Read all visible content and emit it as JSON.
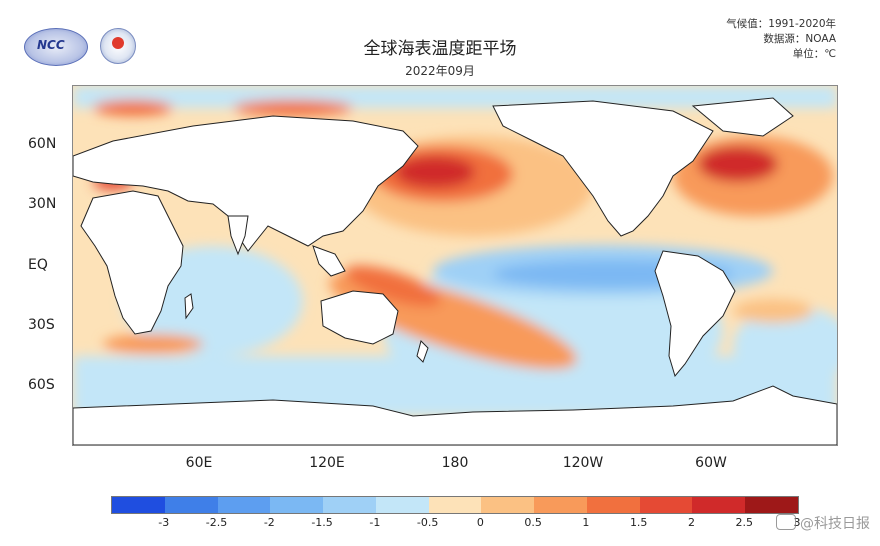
{
  "header": {
    "title": "全球海表温度距平场",
    "subtitle": "2022年09月",
    "meta": [
      "气候值：1991-2020年",
      "数据源：NOAA",
      "单位：℃"
    ]
  },
  "logos": [
    {
      "name": "NCC",
      "label": "NCC"
    },
    {
      "name": "BCC",
      "label": ""
    }
  ],
  "map": {
    "lat_labels": [
      "60N",
      "30N",
      "EQ",
      "30S",
      "60S"
    ],
    "lon_labels": [
      "60E",
      "120E",
      "180",
      "120W",
      "60W"
    ]
  },
  "colorbar": {
    "colors": [
      "#1f4ee0",
      "#3f7fe8",
      "#5d9ef0",
      "#7bb8f3",
      "#9fd0f6",
      "#c3e6f8",
      "#fde2b8",
      "#fbc183",
      "#f89a5a",
      "#f1703e",
      "#e54a34",
      "#d02a2a",
      "#9e1818"
    ],
    "labels": [
      "-3",
      "-2.5",
      "-2",
      "-1.5",
      "-1",
      "-0.5",
      "0",
      "0.5",
      "1",
      "1.5",
      "2",
      "2.5",
      "3"
    ]
  },
  "watermark": "@科技日报"
}
